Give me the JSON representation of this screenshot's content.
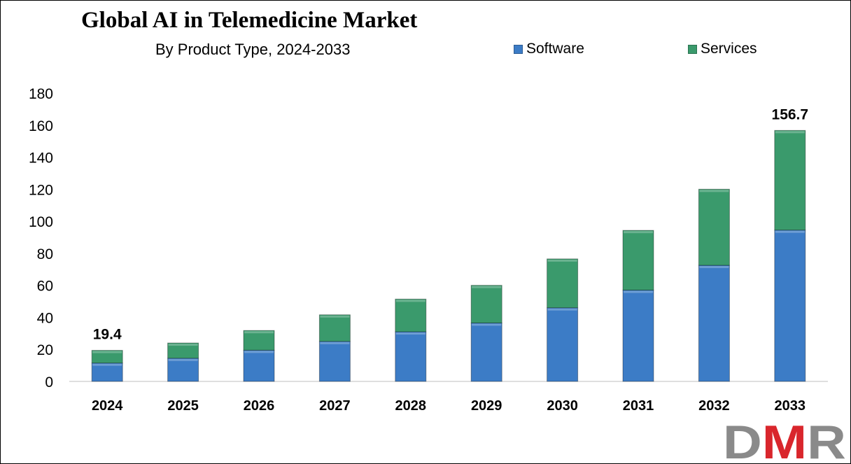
{
  "title": "Global AI in Telemedicine Market",
  "subtitle": "By Product Type, 2024-2033",
  "logo_text": "DMR",
  "colors": {
    "software": "#3c7cc6",
    "services": "#3a9a6c",
    "logo_gray": "#8a8a8a",
    "logo_red": "#d9262c"
  },
  "chart_data": {
    "type": "bar",
    "stacked": true,
    "title": "Global AI in Telemedicine Market",
    "subtitle": "By Product Type, 2024-2033",
    "categories": [
      "2024",
      "2025",
      "2026",
      "2027",
      "2028",
      "2029",
      "2030",
      "2031",
      "2032",
      "2033"
    ],
    "series": [
      {
        "name": "Software",
        "values": [
          11.5,
          14.5,
          19.5,
          25,
          31,
          36.5,
          46,
          57,
          72.5,
          94.5
        ]
      },
      {
        "name": "Services",
        "values": [
          7.9,
          9.5,
          12.3,
          16.6,
          20.4,
          23.5,
          30.5,
          37.3,
          47.5,
          62.2
        ]
      }
    ],
    "data_labels": [
      {
        "category": "2024",
        "text": "19.4"
      },
      {
        "category": "2033",
        "text": "156.7"
      }
    ],
    "xlabel": "",
    "ylabel": "",
    "ylim": [
      0,
      180
    ],
    "yticks": [
      0,
      20,
      40,
      60,
      80,
      100,
      120,
      140,
      160,
      180
    ],
    "grid": false,
    "legend_position": "top-right"
  }
}
